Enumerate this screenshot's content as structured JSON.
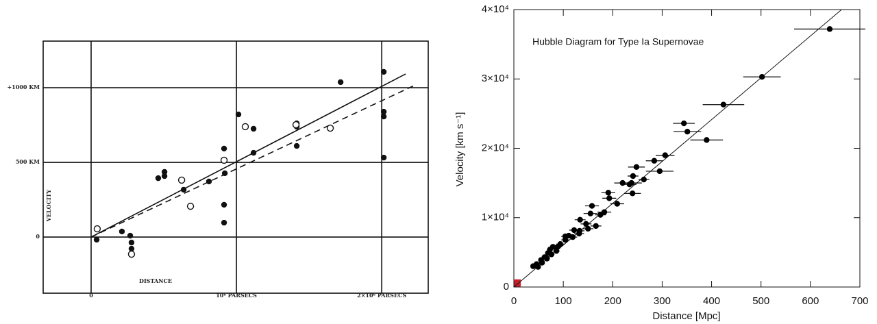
{
  "chart_data": [
    {
      "type": "scatter",
      "xlabel": "DISTANCE",
      "ylabel": "VELOCITY",
      "xlim": [
        -330000,
        2320000
      ],
      "ylim": [
        -376,
        1312
      ],
      "xticks": [
        0,
        {
          "value": 1000000,
          "label": "10⁶ PARSECS"
        },
        {
          "value": 2000000,
          "label": "2×10⁶ PARSECS"
        }
      ],
      "yticks": [
        0,
        {
          "value": 500,
          "label": "500 KM"
        },
        {
          "value": 1000,
          "label": "+1000 KM"
        }
      ],
      "grid": true,
      "series": [
        {
          "marker": "filled",
          "color": "#111111",
          "x": [
            38000,
            212000,
            269000,
            278000,
            278000,
            462000,
            505000,
            505000,
            637000,
            811000,
            915000,
            915000,
            915000,
            920000,
            1014000,
            1118000,
            1118000,
            1415000,
            1415000,
            1415000,
            1717000,
            2014000,
            2014000,
            2014000,
            2014000
          ],
          "values": [
            -18,
            37,
            9,
            -37,
            -78,
            394,
            436,
            408,
            317,
            372,
            96,
            216,
            592,
            427,
            821,
            725,
            564,
            761,
            610,
            739,
            1037,
            1106,
            839,
            807,
            532
          ]
        },
        {
          "marker": "open",
          "color": "#111111",
          "x": [
            42000,
            278000,
            623000,
            684000,
            915000,
            1061000,
            1410000,
            1646000
          ],
          "values": [
            55,
            -115,
            381,
            206,
            514,
            739,
            752,
            729
          ]
        }
      ],
      "fits": [
        {
          "style": "solid",
          "x": [
            0,
            2165000
          ],
          "values": [
            0,
            1092
          ]
        },
        {
          "style": "dashed",
          "x": [
            0,
            2222000
          ],
          "values": [
            0,
            1014
          ]
        }
      ]
    },
    {
      "type": "scatter",
      "title": "Hubble Diagram for Type Ia Supernovae",
      "xlabel": "Distance [Mpc]",
      "ylabel": "Velocity [km s⁻¹]",
      "xlim": [
        0,
        700
      ],
      "ylim": [
        0,
        40000
      ],
      "xticks": [
        0,
        100,
        200,
        300,
        400,
        500,
        600,
        700
      ],
      "yticks": [
        0,
        {
          "value": 10000,
          "label": "1×10⁴"
        },
        {
          "value": 20000,
          "label": "2×10⁴"
        },
        {
          "value": 30000,
          "label": "3×10⁴"
        },
        {
          "value": 40000,
          "label": "4×10⁴"
        }
      ],
      "grid": false,
      "series": [
        {
          "marker": "filled",
          "color": "#000000",
          "x": [
            639,
            502,
            424,
            344,
            351,
            390,
            306,
            284,
            295,
            248,
            263,
            238,
            220,
            234,
            241,
            240,
            191,
            193,
            209,
            158,
            183,
            175,
            155,
            166,
            134,
            146,
            150,
            133,
            122,
            132,
            111,
            119,
            104,
            94,
            89,
            86,
            73,
            69,
            76,
            62,
            55,
            67,
            46,
            49,
            39,
            57,
            79,
            104
          ],
          "values": [
            37200,
            30300,
            26300,
            23600,
            22400,
            21200,
            19000,
            18200,
            16700,
            17300,
            15500,
            15000,
            15000,
            14800,
            16000,
            13500,
            13600,
            12800,
            12000,
            11700,
            10800,
            10400,
            10600,
            8800,
            9700,
            9100,
            8400,
            8100,
            8200,
            7700,
            7400,
            7200,
            6800,
            6200,
            5800,
            5200,
            5400,
            4900,
            4700,
            4300,
            3900,
            4100,
            3300,
            2900,
            3000,
            3500,
            5800,
            7300
          ],
          "xerr": [
            72,
            38,
            42,
            22,
            28,
            33,
            19,
            17,
            28,
            17,
            11,
            21,
            17,
            14,
            11,
            17,
            14,
            14,
            14,
            14,
            14,
            11,
            14,
            11,
            11,
            11,
            11,
            10,
            10,
            10,
            9,
            9,
            8,
            8,
            7,
            7,
            6,
            6,
            6,
            5,
            5,
            5,
            4,
            4,
            4,
            5,
            6,
            8
          ]
        }
      ],
      "fits": [
        {
          "style": "solid",
          "x": [
            0,
            663
          ],
          "values": [
            0,
            40000
          ]
        }
      ],
      "highlight": {
        "x": [
          0,
          14
        ],
        "y": [
          0,
          1100
        ],
        "color": "#c8202a"
      }
    }
  ]
}
